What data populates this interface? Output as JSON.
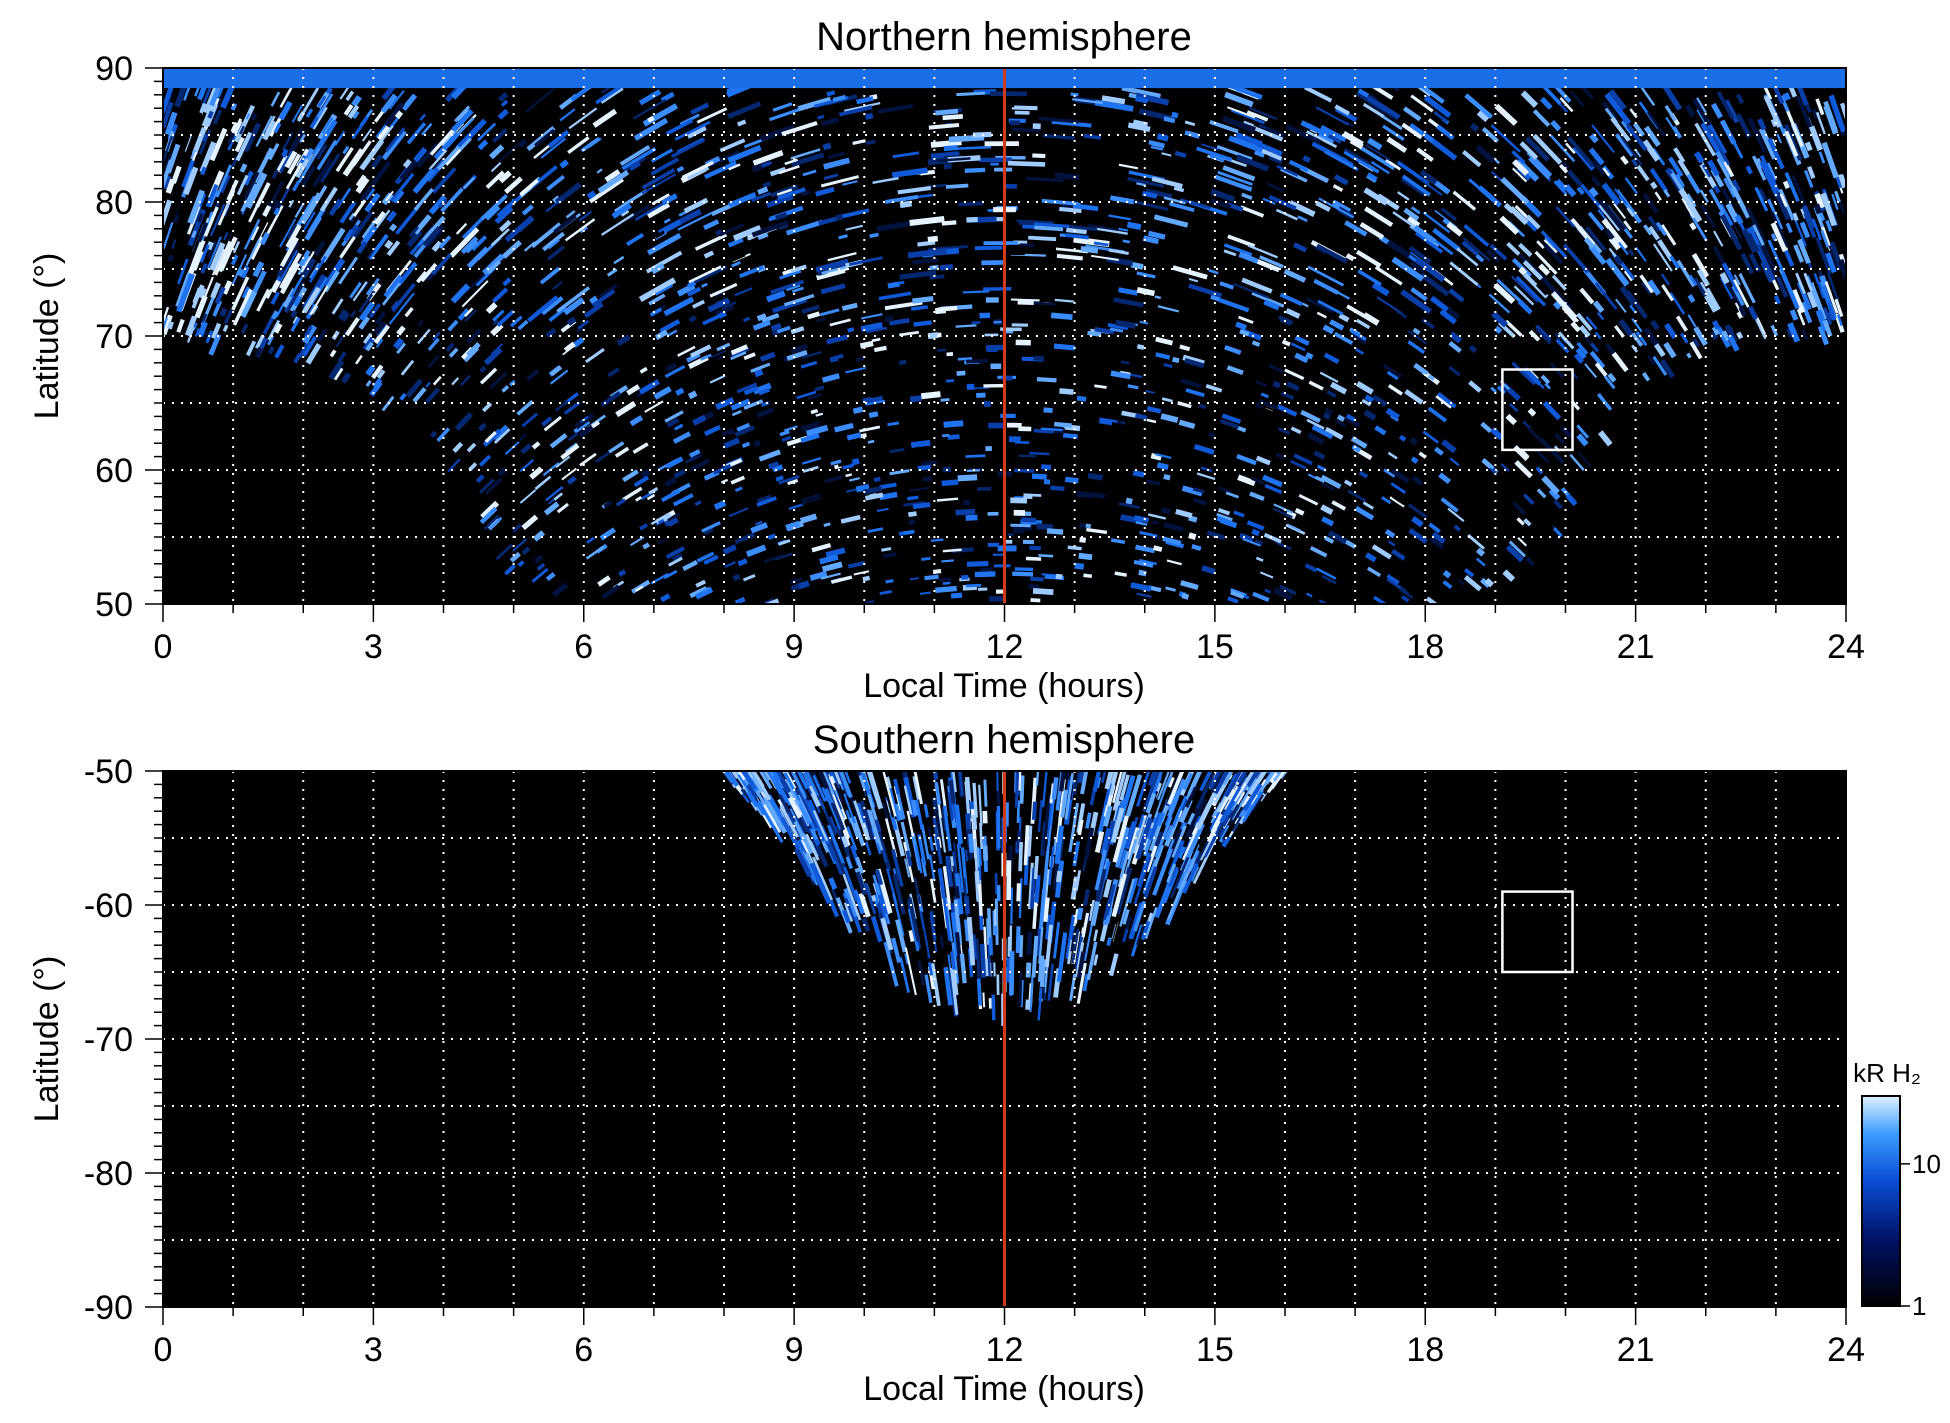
{
  "chart_data": [
    {
      "type": "heatmap",
      "title": "Northern hemisphere",
      "xlabel": "Local Time (hours)",
      "ylabel": "Latitude (°)",
      "xlim": [
        0,
        24
      ],
      "ylim": [
        50,
        90
      ],
      "xticks": [
        "0",
        "3",
        "6",
        "9",
        "12",
        "15",
        "18",
        "21",
        "24"
      ],
      "yticks": [
        "50",
        "60",
        "70",
        "80",
        "90"
      ],
      "grid": true,
      "reference_line": {
        "x": 12,
        "color": "#d23a1a"
      },
      "highlight_box": {
        "x": [
          19.1,
          20.1
        ],
        "y": [
          61.5,
          67.5
        ],
        "color": "#ffffff"
      },
      "coverage_boundary": {
        "lt": [
          0,
          1,
          2,
          3,
          4,
          5,
          6,
          7,
          8,
          9,
          10,
          11,
          12,
          13,
          14,
          15,
          16,
          17,
          18,
          19,
          20,
          21,
          22,
          23,
          24
        ],
        "min_lat": [
          69.5,
          69,
          68,
          66,
          61,
          52,
          50,
          50,
          50,
          50,
          50,
          50,
          50,
          50,
          50,
          50,
          50,
          50,
          50,
          50,
          56,
          66,
          69,
          70,
          70
        ]
      },
      "top_edge_lat": 88.5
    },
    {
      "type": "heatmap",
      "title": "Southern hemisphere",
      "xlabel": "Local Time (hours)",
      "ylabel": "Latitude (°)",
      "xlim": [
        0,
        24
      ],
      "ylim": [
        -90,
        -50
      ],
      "xticks": [
        "0",
        "3",
        "6",
        "9",
        "12",
        "15",
        "18",
        "21",
        "24"
      ],
      "yticks": [
        "-50",
        "-60",
        "-70",
        "-80",
        "-90"
      ],
      "grid": true,
      "reference_line": {
        "x": 12,
        "color": "#d23a1a"
      },
      "highlight_box": {
        "x": [
          19.1,
          20.1
        ],
        "y": [
          -65,
          -59
        ],
        "color": "#ffffff"
      },
      "coverage_boundary": {
        "lt": [
          8,
          8.5,
          9,
          9.5,
          10,
          10.5,
          11,
          11.5,
          12,
          12.5,
          13,
          13.5,
          14,
          14.5,
          15,
          15.5,
          16
        ],
        "max_depth_lat": [
          -50,
          -53,
          -56,
          -59.5,
          -62.5,
          -65,
          -66.5,
          -67.5,
          -68,
          -67.5,
          -66.5,
          -65,
          -62.5,
          -59.5,
          -56,
          -53,
          -50
        ]
      }
    }
  ],
  "colorbar": {
    "label": "kR H₂",
    "ticks": [
      "1",
      "10"
    ],
    "colors": [
      "#000000",
      "#001060",
      "#0a4fd6",
      "#3b9cff",
      "#dff1ff"
    ]
  }
}
